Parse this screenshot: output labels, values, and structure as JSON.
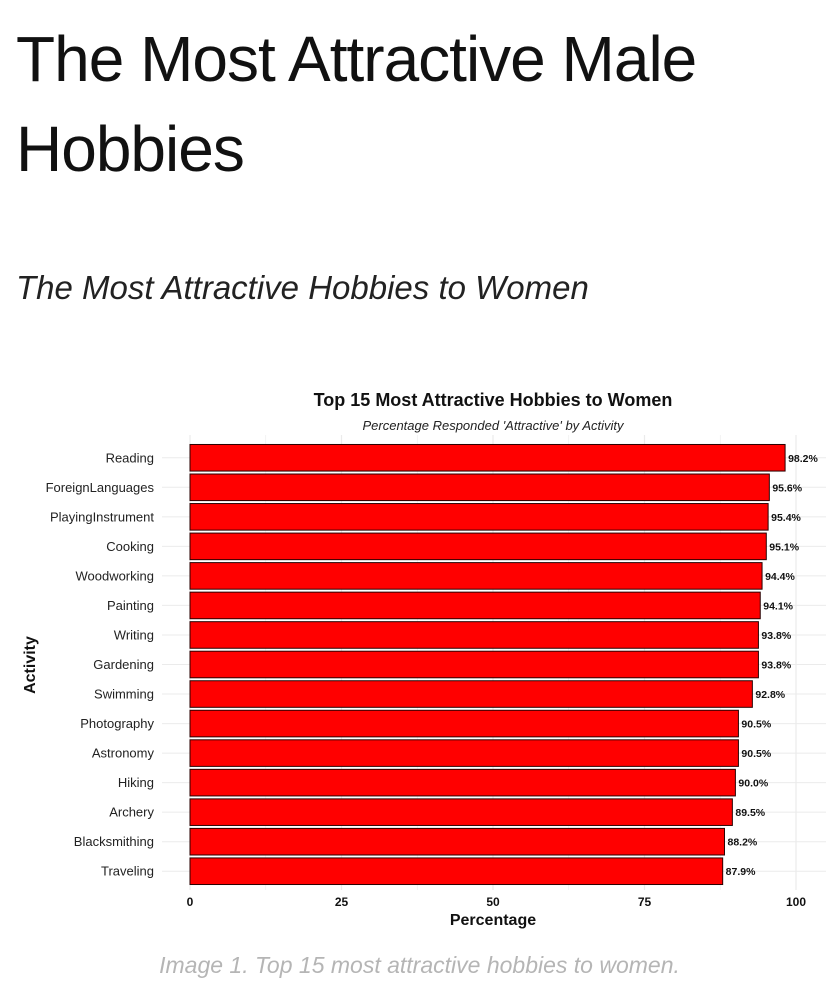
{
  "article": {
    "headline": "The Most Attractive Male Hobbies",
    "subheading": "The Most Attractive Hobbies to Women",
    "caption": "Image 1. Top 15 most attractive hobbies to women."
  },
  "colors": {
    "bar_fill": "#ff0000",
    "bar_stroke": "#2a0000",
    "gridline": "#ebebeb",
    "text": "#111111",
    "caption": "#b5b5b5"
  },
  "chart_data": {
    "type": "bar",
    "orientation": "horizontal",
    "title": "Top 15 Most Attractive Hobbies to Women",
    "subtitle": "Percentage Responded 'Attractive' by Activity",
    "xlabel": "Percentage",
    "ylabel": "Activity",
    "xlim": [
      0,
      100
    ],
    "xticks": [
      0,
      25,
      50,
      75,
      100
    ],
    "grid": true,
    "legend": "none",
    "categories": [
      "Reading",
      "ForeignLanguages",
      "PlayingInstrument",
      "Cooking",
      "Woodworking",
      "Painting",
      "Writing",
      "Gardening",
      "Swimming",
      "Photography",
      "Astronomy",
      "Hiking",
      "Archery",
      "Blacksmithing",
      "Traveling"
    ],
    "values": [
      98.2,
      95.6,
      95.4,
      95.1,
      94.4,
      94.1,
      93.8,
      93.8,
      92.8,
      90.5,
      90.5,
      90.0,
      89.5,
      88.2,
      87.9
    ],
    "data_labels": [
      "98.2%",
      "95.6%",
      "95.4%",
      "95.1%",
      "94.4%",
      "94.1%",
      "93.8%",
      "93.8%",
      "92.8%",
      "90.5%",
      "90.5%",
      "90.0%",
      "89.5%",
      "88.2%",
      "87.9%"
    ]
  }
}
